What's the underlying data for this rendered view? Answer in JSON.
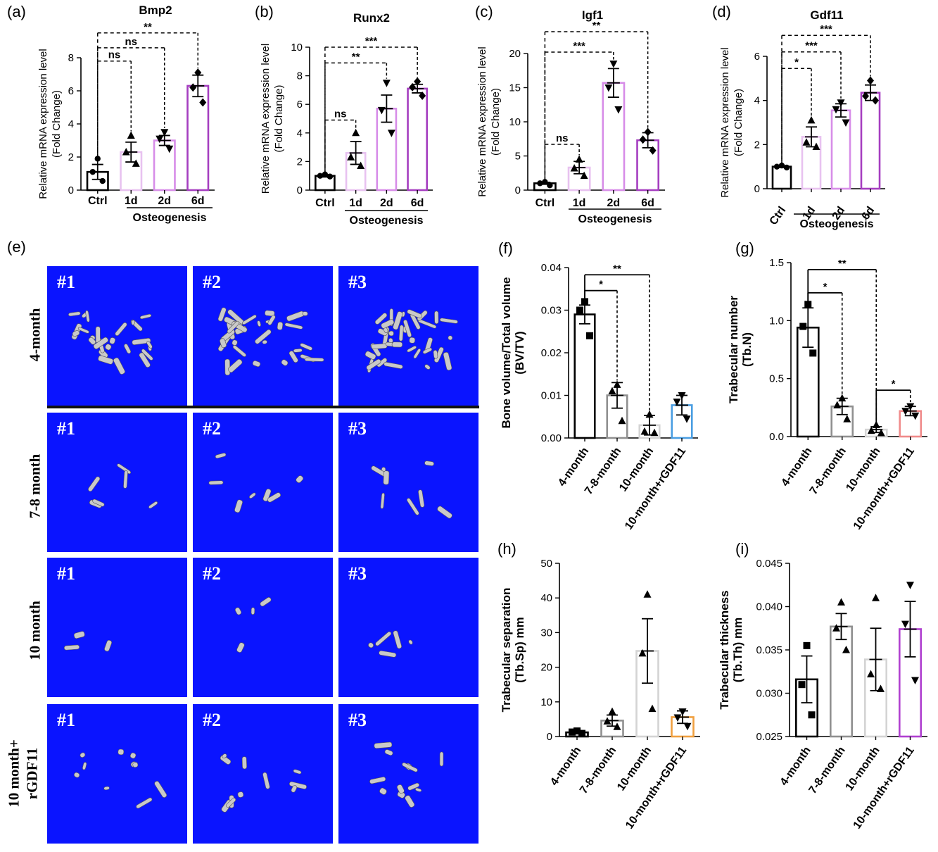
{
  "panels": {
    "a": {
      "letter": "(a)",
      "title": "Bmp2",
      "ylabel1": "Relative  mRNA expression level",
      "ylabel2": "(Fold Change)",
      "categories": [
        "Ctrl",
        "1d",
        "2d",
        "6d"
      ],
      "group_label": "Osteogenesis",
      "ylim": [
        0,
        8
      ],
      "yticks": [
        "0",
        "2",
        "4",
        "6",
        "8"
      ],
      "means": [
        1.1,
        2.3,
        3.0,
        6.3
      ],
      "sems": [
        0.45,
        0.6,
        0.3,
        0.65
      ],
      "points": [
        [
          1.9,
          1.1,
          0.55
        ],
        [
          3.3,
          2.3,
          1.6
        ],
        [
          3.5,
          3.1,
          2.5
        ],
        [
          7.1,
          6.2,
          5.3
        ]
      ],
      "markers": [
        "circle",
        "triangle",
        "triangle-down",
        "diamond"
      ],
      "colors": [
        "#000000",
        "#e8c2f0",
        "#d78de8",
        "#a53ec0"
      ],
      "brackets": [
        {
          "to": 3,
          "label": "**",
          "y": 9.5
        },
        {
          "to": 2,
          "label": "ns",
          "y": 8.6
        },
        {
          "to": 1,
          "label": "ns",
          "y": 7.8
        }
      ]
    },
    "b": {
      "letter": "(b)",
      "title": "Runx2",
      "ylabel1": "Relative  mRNA expression level",
      "ylabel2": "(Fold Change)",
      "categories": [
        "Ctrl",
        "1d",
        "2d",
        "6d"
      ],
      "group_label": "Osteogenesis",
      "ylim": [
        0,
        10
      ],
      "yticks": [
        "0",
        "2",
        "4",
        "6",
        "8",
        "10"
      ],
      "means": [
        1.0,
        2.6,
        5.7,
        7.1
      ],
      "sems": [
        0.08,
        0.8,
        0.95,
        0.3
      ],
      "points": [
        [
          1.1,
          1.0,
          0.95
        ],
        [
          4.0,
          2.3,
          1.7
        ],
        [
          7.5,
          5.6,
          4.0
        ],
        [
          7.6,
          7.2,
          6.6
        ]
      ],
      "markers": [
        "circle",
        "triangle",
        "triangle-down",
        "diamond"
      ],
      "colors": [
        "#000000",
        "#e8c2f0",
        "#d78de8",
        "#a53ec0"
      ],
      "brackets": [
        {
          "to": 3,
          "label": "***",
          "y": 10.0
        },
        {
          "to": 2,
          "label": "**",
          "y": 8.9
        },
        {
          "to": 1,
          "label": "ns",
          "y": 4.9
        }
      ]
    },
    "c": {
      "letter": "(c)",
      "title": "Igf1",
      "ylabel1": "Relative  mRNA expression level",
      "ylabel2": "(Fold Change)",
      "categories": [
        "Ctrl",
        "1d",
        "2d",
        "6d"
      ],
      "group_label": "Osteogenesis",
      "ylim": [
        0,
        20
      ],
      "yticks": [
        "0",
        "5",
        "10",
        "15",
        "20"
      ],
      "means": [
        1.0,
        3.3,
        15.7,
        7.3
      ],
      "sems": [
        0.15,
        0.9,
        2.1,
        1.1
      ],
      "points": [
        [
          1.2,
          1.0,
          0.7
        ],
        [
          4.5,
          3.2,
          2.1
        ],
        [
          18.5,
          15.0,
          11.8
        ],
        [
          8.5,
          7.4,
          5.8
        ]
      ],
      "markers": [
        "circle",
        "triangle",
        "triangle-down",
        "diamond"
      ],
      "colors": [
        "#000000",
        "#e8c2f0",
        "#d78de8",
        "#a53ec0"
      ],
      "brackets": [
        {
          "to": 3,
          "label": "**",
          "y": 23.2
        },
        {
          "to": 2,
          "label": "***",
          "y": 20.2
        },
        {
          "to": 1,
          "label": "ns",
          "y": 6.7
        }
      ]
    },
    "d": {
      "letter": "(d)",
      "title": "Gdf11",
      "ylabel1": "Relative  mRNA expression level",
      "ylabel2": "(Fold Change)",
      "categories": [
        "Ctrl",
        "1d",
        "2d",
        "6d"
      ],
      "group_label": "Osteogenesis",
      "ylim": [
        0,
        6
      ],
      "yticks": [
        "0",
        "2",
        "4",
        "6"
      ],
      "means": [
        1.0,
        2.35,
        3.55,
        4.35
      ],
      "sems": [
        0.04,
        0.45,
        0.3,
        0.35
      ],
      "points": [
        [
          1.05,
          1.0,
          0.96
        ],
        [
          3.1,
          2.1,
          1.9
        ],
        [
          3.9,
          3.6,
          3.0
        ],
        [
          4.9,
          4.2,
          4.0
        ]
      ],
      "markers": [
        "circle",
        "triangle",
        "triangle-down",
        "diamond"
      ],
      "colors": [
        "#000000",
        "#e8c2f0",
        "#d78de8",
        "#a53ec0"
      ],
      "brackets": [
        {
          "to": 3,
          "label": "***",
          "y": 6.95
        },
        {
          "to": 2,
          "label": "***",
          "y": 6.2
        },
        {
          "to": 1,
          "label": "*",
          "y": 5.45
        }
      ]
    },
    "f": {
      "letter": "(f)",
      "ylabel1": "Bone volume/Total volume",
      "ylabel2": "(BV/TV)",
      "categories": [
        "4-month",
        "7-8-month",
        "10-month",
        "10-month+rGDF11"
      ],
      "ylim": [
        0,
        0.04
      ],
      "yticks": [
        "0.00",
        "0.01",
        "0.02",
        "0.03",
        "0.04"
      ],
      "means": [
        0.029,
        0.01,
        0.003,
        0.0077
      ],
      "sems": [
        0.0022,
        0.003,
        0.0023,
        0.0023
      ],
      "points": [
        [
          0.032,
          0.03,
          0.024
        ],
        [
          0.0125,
          0.011,
          0.004
        ],
        [
          0.0055,
          0.0015,
          0.0012
        ],
        [
          0.01,
          0.0085,
          0.0045
        ]
      ],
      "markers": [
        "square",
        "triangle",
        "triangle",
        "triangle-down"
      ],
      "colors": [
        "#000000",
        "#909090",
        "#d4d4d4",
        "#4a9ee2"
      ],
      "brackets": [
        {
          "to": 2,
          "label": "**",
          "y": 0.0383,
          "style": "mixed"
        },
        {
          "to": 1,
          "label": "*",
          "y": 0.0346,
          "style": "mixed"
        }
      ]
    },
    "g": {
      "letter": "(g)",
      "ylabel1": "Trabecular number",
      "ylabel2": "(Tb.N)",
      "categories": [
        "4-month",
        "7-8-month",
        "10-month",
        "10-month+rGDF11"
      ],
      "ylim": [
        0,
        1.5
      ],
      "yticks": [
        "0.0",
        "0.5",
        "1.0",
        "1.5"
      ],
      "means": [
        0.94,
        0.26,
        0.06,
        0.22
      ],
      "sems": [
        0.17,
        0.07,
        0.025,
        0.04
      ],
      "points": [
        [
          1.14,
          0.95,
          0.72
        ],
        [
          0.33,
          0.27,
          0.15
        ],
        [
          0.1,
          0.05,
          0.03
        ],
        [
          0.26,
          0.22,
          0.18
        ]
      ],
      "markers": [
        "square",
        "triangle",
        "triangle",
        "triangle-down"
      ],
      "colors": [
        "#000000",
        "#909090",
        "#d4d4d4",
        "#f08a8a"
      ],
      "brackets": [
        {
          "from": 0,
          "to": 2,
          "label": "**",
          "y": 1.44,
          "style": "mixed"
        },
        {
          "from": 0,
          "to": 1,
          "label": "*",
          "y": 1.24,
          "style": "mixed"
        },
        {
          "from": 2,
          "to": 3,
          "label": "*",
          "y": 0.4,
          "style": "mixed"
        }
      ]
    },
    "h": {
      "letter": "(h)",
      "ylabel1": "Trabecular separation",
      "ylabel2": "(Tb.Sp) mm",
      "categories": [
        "4-month",
        "7-8-month",
        "10-month",
        "10-month+rGDF11"
      ],
      "ylim": [
        0,
        50
      ],
      "yticks": [
        "0",
        "10",
        "20",
        "30",
        "40",
        "50"
      ],
      "means": [
        1.2,
        4.6,
        24.7,
        5.6
      ],
      "sems": [
        0.3,
        1.6,
        9.3,
        1.8
      ],
      "points": [
        [
          1.6,
          1.3,
          0.9
        ],
        [
          7.2,
          4.4,
          2.8
        ],
        [
          41.0,
          24.0,
          8.0
        ],
        [
          7.2,
          5.5,
          3.0
        ]
      ],
      "markers": [
        "square",
        "triangle",
        "triangle",
        "triangle-down"
      ],
      "colors": [
        "#000000",
        "#909090",
        "#d4d4d4",
        "#f0a040"
      ],
      "brackets": []
    },
    "i": {
      "letter": "(i)",
      "ylabel1": "Trabecular thickness",
      "ylabel2": "(Tb.Th) mm",
      "categories": [
        "4-month",
        "7-8-month",
        "10-month",
        "10-month+rGDF11"
      ],
      "ylim": [
        0.025,
        0.045
      ],
      "yticks": [
        "0.025",
        "0.030",
        "0.035",
        "0.040",
        "0.045"
      ],
      "means": [
        0.0316,
        0.0377,
        0.0339,
        0.0374
      ],
      "sems": [
        0.0027,
        0.0015,
        0.0036,
        0.0032
      ],
      "points": [
        [
          0.0355,
          0.031,
          0.0275
        ],
        [
          0.0405,
          0.0375,
          0.035
        ],
        [
          0.041,
          0.0322,
          0.0305
        ],
        [
          0.0425,
          0.038,
          0.0315
        ]
      ],
      "markers": [
        "square",
        "triangle",
        "triangle",
        "triangle-down"
      ],
      "colors": [
        "#000000",
        "#909090",
        "#d4d4d4",
        "#b040d0"
      ],
      "brackets": []
    }
  },
  "panel_e": {
    "letter": "(e)",
    "rows": [
      "4-month",
      "7-8 month",
      "10 month",
      "10 month+",
      "rGDF11"
    ],
    "samples": [
      "#1",
      "#2",
      "#3"
    ]
  }
}
